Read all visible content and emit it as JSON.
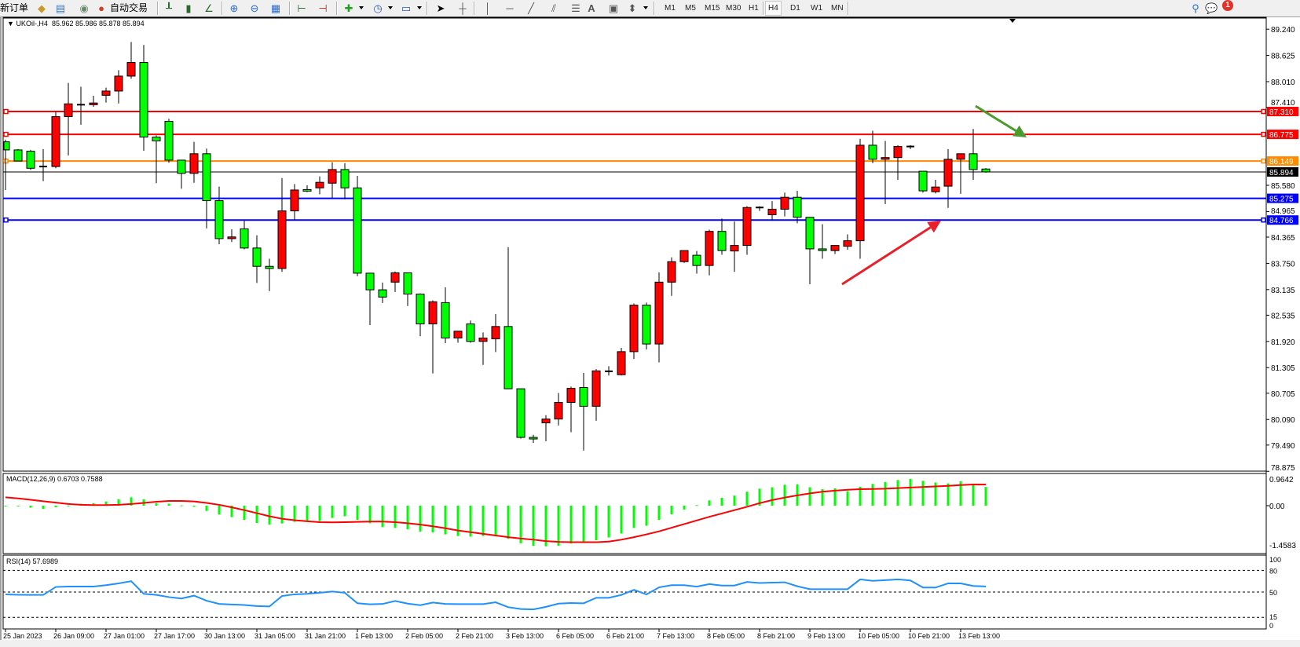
{
  "toolbar": {
    "new_order": "新订单",
    "auto_trading": "自动交易",
    "icons": [
      "new-order-icon",
      "market-watch-icon",
      "data-window-icon",
      "navigator-icon",
      "auto-trading-icon",
      "bar-chart-icon",
      "candlestick-icon",
      "line-chart-icon",
      "zoom-in-icon",
      "zoom-out-icon",
      "tile-windows-icon",
      "chart-shift-icon",
      "autoscroll-icon",
      "indicators-icon",
      "periods-icon",
      "templates-icon",
      "cursor-icon",
      "crosshair-icon",
      "vertical-line-icon",
      "horizontal-line-icon",
      "trendline-icon",
      "equidistant-channel-icon",
      "fibonacci-icon",
      "text-icon",
      "text-label-icon",
      "arrows-icon",
      "search-icon",
      "messages-icon"
    ],
    "timeframes": [
      "M1",
      "M5",
      "M15",
      "M30",
      "H1",
      "H4",
      "D1",
      "W1",
      "MN"
    ],
    "active_timeframe": "H4",
    "text_tool": "A",
    "notification_count": "1"
  },
  "chart": {
    "symbol": "UKOil-,H4",
    "ohlc": "85.962 85.986 85.878 85.894",
    "macd_label": "MACD(12,26,9) 0.6703 0.7588",
    "rsi_label": "RSI(14) 57.6989"
  },
  "chart_data": [
    {
      "type": "candlestick",
      "title": "UKOil-,H4",
      "colors": {
        "up": "#ff0000",
        "down": "#00ff00",
        "wick": "#000000"
      },
      "x_tick_labels": [
        "25 Jan 2023",
        "26 Jan 09:00",
        "27 Jan 01:00",
        "27 Jan 17:00",
        "30 Jan 13:00",
        "31 Jan 05:00",
        "31 Jan 21:00",
        "1 Feb 13:00",
        "2 Feb 05:00",
        "2 Feb 21:00",
        "3 Feb 13:00",
        "6 Feb 05:00",
        "6 Feb 21:00",
        "7 Feb 13:00",
        "8 Feb 05:00",
        "8 Feb 21:00",
        "9 Feb 13:00",
        "10 Feb 05:00",
        "10 Feb 21:00",
        "13 Feb 13:00"
      ],
      "y_tick_labels": [
        "89.240",
        "88.625",
        "88.010",
        "87.410",
        "85.580",
        "84.965",
        "84.365",
        "83.750",
        "83.135",
        "82.535",
        "81.920",
        "81.305",
        "80.705",
        "80.090",
        "79.490",
        "78.875"
      ],
      "ylim": [
        78.875,
        89.24
      ],
      "ohlc_fields": [
        "open",
        "high",
        "low",
        "close"
      ],
      "candles": [
        [
          86.6,
          86.65,
          85.47,
          86.41
        ],
        [
          86.41,
          86.43,
          86.15,
          86.15
        ],
        [
          86.38,
          86.41,
          85.94,
          85.98
        ],
        [
          86.02,
          86.43,
          85.68,
          86.02
        ],
        [
          86.02,
          87.3,
          85.98,
          87.19
        ],
        [
          87.19,
          87.98,
          86.28,
          87.49
        ],
        [
          87.47,
          87.89,
          87.0,
          87.47
        ],
        [
          87.47,
          87.68,
          87.42,
          87.51
        ],
        [
          87.69,
          87.87,
          87.52,
          87.79
        ],
        [
          87.79,
          88.28,
          87.5,
          88.14
        ],
        [
          88.14,
          88.94,
          88.08,
          88.46
        ],
        [
          88.46,
          88.87,
          86.39,
          86.71
        ],
        [
          86.71,
          86.75,
          85.63,
          86.62
        ],
        [
          87.08,
          87.14,
          86.11,
          86.17
        ],
        [
          86.17,
          86.17,
          85.5,
          85.86
        ],
        [
          85.86,
          86.6,
          85.64,
          86.32
        ],
        [
          86.32,
          86.44,
          84.57,
          85.22
        ],
        [
          85.22,
          85.55,
          84.2,
          84.33
        ],
        [
          84.33,
          84.55,
          84.25,
          84.37
        ],
        [
          84.56,
          84.75,
          84.08,
          84.11
        ],
        [
          84.11,
          84.41,
          83.29,
          83.68
        ],
        [
          83.68,
          83.86,
          83.1,
          83.63
        ],
        [
          83.63,
          85.75,
          83.55,
          84.98
        ],
        [
          84.98,
          85.61,
          84.77,
          85.47
        ],
        [
          85.48,
          85.58,
          85.42,
          85.45
        ],
        [
          85.52,
          85.79,
          85.37,
          85.65
        ],
        [
          85.63,
          86.12,
          85.28,
          85.95
        ],
        [
          85.95,
          86.1,
          85.25,
          85.52
        ],
        [
          85.52,
          85.8,
          83.45,
          83.52
        ],
        [
          83.52,
          83.52,
          82.3,
          83.13
        ],
        [
          83.13,
          83.3,
          82.82,
          82.96
        ],
        [
          83.31,
          83.56,
          83.08,
          83.53
        ],
        [
          83.53,
          83.53,
          82.75,
          83.03
        ],
        [
          83.03,
          83.05,
          82.04,
          82.33
        ],
        [
          82.33,
          82.88,
          81.17,
          82.85
        ],
        [
          82.83,
          83.19,
          81.88,
          82.0
        ],
        [
          82.0,
          82.16,
          81.89,
          82.16
        ],
        [
          82.33,
          82.41,
          81.89,
          81.92
        ],
        [
          81.92,
          82.13,
          81.37,
          82.0
        ],
        [
          81.98,
          82.56,
          81.67,
          82.27
        ],
        [
          82.27,
          84.13,
          80.81,
          80.81
        ],
        [
          80.81,
          80.81,
          79.64,
          79.67
        ],
        [
          79.67,
          79.73,
          79.54,
          79.64
        ],
        [
          80.01,
          80.19,
          79.58,
          80.1
        ],
        [
          80.1,
          80.71,
          79.95,
          80.49
        ],
        [
          80.49,
          80.86,
          79.79,
          80.82
        ],
        [
          80.84,
          81.18,
          79.36,
          80.4
        ],
        [
          80.4,
          81.27,
          80.06,
          81.23
        ],
        [
          81.22,
          81.34,
          81.12,
          81.22
        ],
        [
          81.14,
          81.77,
          81.12,
          81.68
        ],
        [
          81.68,
          82.81,
          81.51,
          82.77
        ],
        [
          82.77,
          82.83,
          81.73,
          81.86
        ],
        [
          81.86,
          83.54,
          81.43,
          83.31
        ],
        [
          83.31,
          83.89,
          82.99,
          83.79
        ],
        [
          83.79,
          84.05,
          83.76,
          84.05
        ],
        [
          83.94,
          84.04,
          83.51,
          83.7
        ],
        [
          83.7,
          84.54,
          83.47,
          84.5
        ],
        [
          84.5,
          84.8,
          83.95,
          84.05
        ],
        [
          84.04,
          84.73,
          83.55,
          84.17
        ],
        [
          84.17,
          85.09,
          83.95,
          85.06
        ],
        [
          85.06,
          85.09,
          84.98,
          85.06
        ],
        [
          84.89,
          85.21,
          84.76,
          85.02
        ],
        [
          85.02,
          85.41,
          84.85,
          85.3
        ],
        [
          85.3,
          85.45,
          84.69,
          84.83
        ],
        [
          84.83,
          84.83,
          83.26,
          84.09
        ],
        [
          84.09,
          84.67,
          83.86,
          84.05
        ],
        [
          84.05,
          84.17,
          83.97,
          84.17
        ],
        [
          84.15,
          84.43,
          84.07,
          84.28
        ],
        [
          84.28,
          86.67,
          83.86,
          86.52
        ],
        [
          86.52,
          86.86,
          86.1,
          86.19
        ],
        [
          86.19,
          86.62,
          85.14,
          86.23
        ],
        [
          86.23,
          86.52,
          85.71,
          86.49
        ],
        [
          86.49,
          86.52,
          86.43,
          86.49
        ],
        [
          85.91,
          85.91,
          85.41,
          85.45
        ],
        [
          85.43,
          85.71,
          85.39,
          85.54
        ],
        [
          85.56,
          86.43,
          85.05,
          86.19
        ],
        [
          86.19,
          86.32,
          85.38,
          86.32
        ],
        [
          86.32,
          86.9,
          85.71,
          85.95
        ],
        [
          85.962,
          85.986,
          85.878,
          85.894
        ]
      ],
      "bid": {
        "value": "85.894",
        "color": "#000000"
      },
      "levels": [
        {
          "value": "87.310",
          "color": "#ff0000",
          "handles": true
        },
        {
          "value": "86.775",
          "color": "#ff0000",
          "handles": true
        },
        {
          "value": "86.149",
          "color": "#ff8c00",
          "handles": true
        },
        {
          "value": "85.275",
          "color": "#0000ff",
          "handles": false
        },
        {
          "value": "84.766",
          "color": "#0000ff",
          "handles": true
        }
      ],
      "annotations": [
        {
          "type": "arrow",
          "color": "#e8202a",
          "direction": "up-right"
        },
        {
          "type": "arrow",
          "color": "#4a9a2e",
          "direction": "down-right"
        }
      ]
    },
    {
      "type": "bar",
      "title": "MACD(12,26,9) 0.6703 0.7588",
      "y_tick_labels": [
        "0.9642",
        "0.00",
        "-1.4583"
      ],
      "ylim": [
        -1.4583,
        0.9642
      ],
      "series": [
        {
          "kind": "histogram",
          "color": "#00ff00",
          "values": [
            -0.03,
            -0.02,
            -0.07,
            -0.12,
            -0.06,
            0.0,
            0.07,
            0.09,
            0.15,
            0.23,
            0.3,
            0.23,
            0.09,
            0.07,
            0.01,
            -0.04,
            -0.19,
            -0.32,
            -0.41,
            -0.51,
            -0.62,
            -0.68,
            -0.64,
            -0.58,
            -0.55,
            -0.55,
            -0.44,
            -0.38,
            -0.51,
            -0.63,
            -0.77,
            -0.8,
            -0.85,
            -0.93,
            -0.96,
            -1.03,
            -1.09,
            -1.11,
            -1.09,
            -1.09,
            -1.19,
            -1.35,
            -1.44,
            -1.4583,
            -1.44,
            -1.36,
            -1.33,
            -1.24,
            -1.14,
            -1.0,
            -0.8,
            -0.72,
            -0.51,
            -0.31,
            -0.14,
            0.02,
            0.19,
            0.28,
            0.36,
            0.5,
            0.61,
            0.66,
            0.75,
            0.76,
            0.66,
            0.59,
            0.62,
            0.52,
            0.68,
            0.78,
            0.85,
            0.92,
            0.9642,
            0.89,
            0.83,
            0.8,
            0.87,
            0.74,
            0.6703
          ]
        },
        {
          "kind": "line",
          "color": "#ff0000",
          "values": [
            0.3,
            0.26,
            0.21,
            0.16,
            0.11,
            0.06,
            0.03,
            0.02,
            0.02,
            0.03,
            0.06,
            0.1,
            0.14,
            0.17,
            0.17,
            0.15,
            0.1,
            0.03,
            -0.06,
            -0.16,
            -0.27,
            -0.38,
            -0.47,
            -0.52,
            -0.56,
            -0.59,
            -0.6,
            -0.59,
            -0.58,
            -0.57,
            -0.57,
            -0.59,
            -0.63,
            -0.68,
            -0.74,
            -0.81,
            -0.89,
            -0.95,
            -1.01,
            -1.07,
            -1.13,
            -1.18,
            -1.22,
            -1.27,
            -1.3,
            -1.31,
            -1.31,
            -1.31,
            -1.29,
            -1.22,
            -1.13,
            -1.03,
            -0.92,
            -0.79,
            -0.66,
            -0.53,
            -0.4,
            -0.28,
            -0.16,
            -0.04,
            0.09,
            0.2,
            0.29,
            0.37,
            0.44,
            0.5,
            0.54,
            0.57,
            0.59,
            0.6,
            0.61,
            0.63,
            0.65,
            0.67,
            0.69,
            0.71,
            0.74,
            0.76,
            0.7588
          ]
        }
      ]
    },
    {
      "type": "line",
      "title": "RSI(14) 57.6989",
      "y_tick_labels": [
        "100",
        "80",
        "50",
        "15",
        "0"
      ],
      "levels": [
        80,
        50,
        15
      ],
      "ylim": [
        0,
        100
      ],
      "series": [
        {
          "color": "#1e90ff",
          "values": [
            46.7,
            46.2,
            46,
            46,
            57,
            57.6,
            57.6,
            57.6,
            59.5,
            62,
            65,
            47.5,
            46,
            43,
            41,
            45,
            38,
            33.6,
            32.8,
            32,
            30.6,
            30,
            44.5,
            46.8,
            47.5,
            49,
            50.7,
            49,
            34.5,
            33,
            33.5,
            37.6,
            34,
            31.8,
            35.5,
            33.5,
            33.3,
            33.3,
            33.3,
            35.8,
            29,
            26.5,
            26,
            29.5,
            34,
            34.8,
            34.4,
            42,
            42,
            46,
            53,
            46.7,
            56.5,
            59.5,
            59.5,
            57.5,
            61,
            59,
            59,
            64,
            62.5,
            63,
            63.5,
            58,
            54,
            54,
            54,
            54,
            67.5,
            65.5,
            66.5,
            67.5,
            66,
            56.2,
            56.2,
            62,
            62,
            58.4,
            57.6989
          ]
        }
      ]
    }
  ]
}
